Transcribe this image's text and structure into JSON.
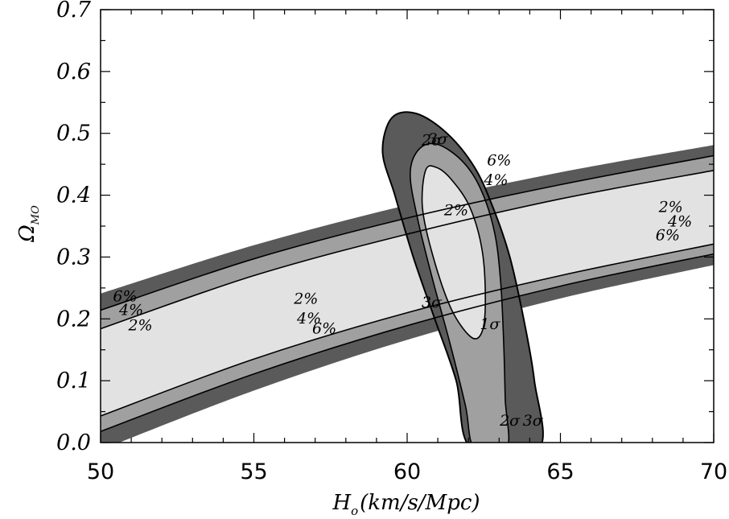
{
  "chart_data": {
    "type": "contour",
    "xlabel": {
      "main": "H",
      "sub": "o",
      "rest": "(km/s/Mpc)"
    },
    "ylabel": {
      "main": "Ω",
      "sub": "MO"
    },
    "xlim": [
      50,
      70
    ],
    "ylim": [
      0.0,
      0.7
    ],
    "xticks": [
      50,
      55,
      60,
      65,
      70
    ],
    "xtick_labels": [
      "50",
      "55",
      "60",
      "65",
      "70"
    ],
    "yticks": [
      0.0,
      0.1,
      0.2,
      0.3,
      0.4,
      0.5,
      0.6,
      0.7
    ],
    "ytick_labels": [
      "0.0",
      "0.1",
      "0.2",
      "0.3",
      "0.4",
      "0.5",
      "0.6",
      "0.7"
    ],
    "colors": {
      "dark": "#5a5a5a",
      "mid": "#a0a0a0",
      "light": "#e2e2e2",
      "line": "#000000"
    },
    "band": {
      "x": [
        50,
        55,
        60,
        65,
        70
      ],
      "levels": [
        {
          "label": "6%",
          "upper": [
            0.241,
            0.319,
            0.384,
            0.437,
            0.481
          ],
          "lower": [
            -0.012,
            0.084,
            0.166,
            0.233,
            0.287
          ]
        },
        {
          "label": "4%",
          "upper": [
            0.214,
            0.297,
            0.363,
            0.417,
            0.464
          ],
          "lower": [
            0.018,
            0.111,
            0.189,
            0.253,
            0.305
          ]
        },
        {
          "label": "2%",
          "upper": [
            0.184,
            0.27,
            0.337,
            0.394,
            0.44
          ],
          "lower": [
            0.043,
            0.135,
            0.21,
            0.27,
            0.321
          ]
        }
      ],
      "labels": [
        {
          "text": "6%",
          "x": 50.8,
          "y": 0.235
        },
        {
          "text": "4%",
          "x": 51.0,
          "y": 0.213
        },
        {
          "text": "2%",
          "x": 51.3,
          "y": 0.188
        },
        {
          "text": "2%",
          "x": 56.7,
          "y": 0.231
        },
        {
          "text": "4%",
          "x": 56.8,
          "y": 0.199
        },
        {
          "text": "6%",
          "x": 57.3,
          "y": 0.183
        },
        {
          "text": "2%",
          "x": 68.6,
          "y": 0.379
        },
        {
          "text": "4%",
          "x": 68.9,
          "y": 0.356
        },
        {
          "text": "6%",
          "x": 68.5,
          "y": 0.334
        },
        {
          "text": "6%",
          "x": 63.0,
          "y": 0.455
        },
        {
          "text": "4%",
          "x": 62.9,
          "y": 0.423
        },
        {
          "text": "2%",
          "x": 61.6,
          "y": 0.374
        }
      ]
    },
    "ellipse": {
      "levels": [
        {
          "label": "3σ",
          "points": [
            [
              59.5,
              0.525
            ],
            [
              59.2,
              0.47
            ],
            [
              59.6,
              0.4
            ],
            [
              60.2,
              0.3
            ],
            [
              60.9,
              0.2
            ],
            [
              61.6,
              0.1
            ],
            [
              62.1,
              -0.01
            ],
            [
              64.3,
              -0.01
            ],
            [
              64.15,
              0.1
            ],
            [
              63.8,
              0.2
            ],
            [
              63.35,
              0.3
            ],
            [
              62.8,
              0.38
            ],
            [
              62.2,
              0.445
            ],
            [
              61.3,
              0.5
            ],
            [
              60.3,
              0.532
            ]
          ]
        },
        {
          "label": "2σ",
          "points": [
            [
              60.4,
              0.475
            ],
            [
              60.1,
              0.435
            ],
            [
              60.35,
              0.36
            ],
            [
              60.85,
              0.26
            ],
            [
              61.4,
              0.16
            ],
            [
              61.9,
              0.06
            ],
            [
              62.2,
              -0.01
            ],
            [
              63.25,
              -0.01
            ],
            [
              63.2,
              0.07
            ],
            [
              63.15,
              0.16
            ],
            [
              63.05,
              0.26
            ],
            [
              62.85,
              0.34
            ],
            [
              62.4,
              0.41
            ],
            [
              61.8,
              0.455
            ],
            [
              61.0,
              0.482
            ]
          ]
        },
        {
          "label": "1σ",
          "points": [
            [
              60.6,
              0.44
            ],
            [
              60.5,
              0.38
            ],
            [
              60.85,
              0.3
            ],
            [
              61.45,
              0.215
            ],
            [
              62.1,
              0.17
            ],
            [
              62.45,
              0.18
            ],
            [
              62.55,
              0.23
            ],
            [
              62.45,
              0.31
            ],
            [
              62.05,
              0.38
            ],
            [
              61.45,
              0.425
            ],
            [
              60.95,
              0.445
            ]
          ]
        }
      ],
      "labels": [
        {
          "text": "3σ",
          "x": 61.0,
          "y": 0.489
        },
        {
          "text": "2σ",
          "x": 60.8,
          "y": 0.487
        },
        {
          "text": "3σ",
          "x": 60.8,
          "y": 0.225
        },
        {
          "text": "1σ",
          "x": 62.7,
          "y": 0.19
        },
        {
          "text": "2σ",
          "x": 63.35,
          "y": 0.034
        },
        {
          "text": "3σ",
          "x": 64.1,
          "y": 0.034
        }
      ]
    }
  }
}
